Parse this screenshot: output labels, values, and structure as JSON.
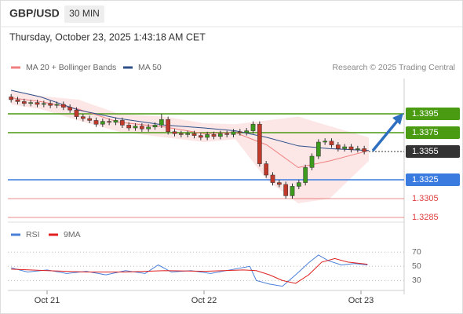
{
  "header": {
    "symbol": "GBP/USD",
    "timeframe": "30 MIN",
    "datetime": "Thursday, October 23, 2025 1:43:18 AM CET"
  },
  "chart_data": [
    {
      "type": "candlestick",
      "credit": "Research © 2025 Trading Central",
      "xlim": [
        0,
        60
      ],
      "ylim": [
        1.328,
        1.34325
      ],
      "xticks": [
        {
          "value": 6,
          "label": "Oct 21"
        },
        {
          "value": 30,
          "label": "Oct 22"
        },
        {
          "value": 54,
          "label": "Oct 23"
        }
      ],
      "up_color": "#3c9a1c",
      "down_color": "#c0392b",
      "x": [
        0.5,
        1.5,
        2.5,
        3.5,
        4.5,
        5.5,
        6.5,
        7.5,
        8.5,
        9.5,
        10.5,
        11.5,
        12.5,
        13.5,
        14.5,
        15.5,
        16.5,
        17.5,
        18.5,
        19.5,
        20.5,
        21.5,
        22.5,
        23.5,
        24.5,
        25.5,
        26.5,
        27.5,
        28.5,
        29.5,
        30.5,
        31.5,
        32.5,
        33.5,
        34.5,
        35.5,
        36.5,
        37.5,
        38.5,
        39.5,
        40.5,
        41.5,
        42.5,
        43.5,
        44.5,
        45.5,
        46.5,
        47.5,
        48.5,
        49.5,
        50.5,
        51.5,
        52.5,
        53.5,
        54.5
      ],
      "open": [
        1.3413,
        1.341,
        1.3408,
        1.3406,
        1.3407,
        1.3405,
        1.3406,
        1.3404,
        1.3405,
        1.3402,
        1.3399,
        1.3392,
        1.339,
        1.3388,
        1.3384,
        1.3387,
        1.3386,
        1.3388,
        1.3383,
        1.338,
        1.3382,
        1.3379,
        1.3381,
        1.3383,
        1.3389,
        1.3376,
        1.3374,
        1.3373,
        1.3374,
        1.3372,
        1.337,
        1.3373,
        1.3371,
        1.3374,
        1.3373,
        1.3376,
        1.3375,
        1.3377,
        1.3384,
        1.3342,
        1.333,
        1.3322,
        1.332,
        1.3308,
        1.3318,
        1.3322,
        1.3338,
        1.335,
        1.3365,
        1.3366,
        1.3362,
        1.3358,
        1.336,
        1.3357,
        1.3358
      ],
      "high": [
        1.3416,
        1.3413,
        1.3411,
        1.341,
        1.341,
        1.3409,
        1.3409,
        1.3408,
        1.3408,
        1.3405,
        1.3402,
        1.3395,
        1.3393,
        1.3391,
        1.339,
        1.339,
        1.3391,
        1.3391,
        1.3386,
        1.3385,
        1.3385,
        1.3384,
        1.3386,
        1.3395,
        1.3392,
        1.3379,
        1.3377,
        1.3377,
        1.3377,
        1.3375,
        1.3376,
        1.3376,
        1.3377,
        1.3377,
        1.3379,
        1.3379,
        1.338,
        1.3387,
        1.3387,
        1.3345,
        1.3333,
        1.3325,
        1.3323,
        1.3321,
        1.3325,
        1.3341,
        1.3353,
        1.3368,
        1.3369,
        1.3369,
        1.3365,
        1.3363,
        1.3363,
        1.3361,
        1.3361
      ],
      "low": [
        1.3407,
        1.3405,
        1.3403,
        1.3403,
        1.3402,
        1.3402,
        1.3401,
        1.3401,
        1.3399,
        1.3396,
        1.3389,
        1.3387,
        1.3385,
        1.3381,
        1.3381,
        1.3383,
        1.3383,
        1.338,
        1.3377,
        1.3377,
        1.3376,
        1.3376,
        1.3378,
        1.338,
        1.3373,
        1.3371,
        1.337,
        1.337,
        1.3369,
        1.3367,
        1.3367,
        1.3368,
        1.3368,
        1.337,
        1.337,
        1.3372,
        1.3372,
        1.3374,
        1.3339,
        1.3327,
        1.3319,
        1.3317,
        1.3305,
        1.3305,
        1.3315,
        1.3319,
        1.3335,
        1.3347,
        1.3362,
        1.3359,
        1.3355,
        1.3355,
        1.3354,
        1.3354,
        1.3352
      ],
      "close": [
        1.341,
        1.3408,
        1.3406,
        1.3407,
        1.3405,
        1.3406,
        1.3404,
        1.3405,
        1.3402,
        1.3399,
        1.3392,
        1.339,
        1.3388,
        1.3384,
        1.3387,
        1.3386,
        1.3388,
        1.3383,
        1.338,
        1.3382,
        1.3379,
        1.3381,
        1.3383,
        1.3389,
        1.3376,
        1.3374,
        1.3373,
        1.3374,
        1.3372,
        1.337,
        1.3373,
        1.3371,
        1.3374,
        1.3373,
        1.3376,
        1.3375,
        1.3377,
        1.3384,
        1.3342,
        1.333,
        1.3322,
        1.332,
        1.3308,
        1.3318,
        1.3322,
        1.3338,
        1.335,
        1.3365,
        1.3366,
        1.3362,
        1.3358,
        1.336,
        1.3357,
        1.3358,
        1.3355
      ],
      "series": [
        {
          "name": "MA 20 + Bollinger Bands",
          "color": "#f08080",
          "x": [
            0.5,
            5,
            10.8,
            17,
            24,
            30,
            34.8,
            39.6,
            44.4,
            49.2,
            55.2
          ],
          "values": [
            1.3412,
            1.3408,
            1.34,
            1.3386,
            1.3381,
            1.3374,
            1.3375,
            1.3362,
            1.3338,
            1.3345,
            1.3356
          ],
          "upper": [
            1.342,
            1.3414,
            1.341,
            1.3395,
            1.3392,
            1.3385,
            1.3384,
            1.3388,
            1.3392,
            1.3382,
            1.337
          ],
          "lower": [
            1.3405,
            1.34,
            1.3388,
            1.3376,
            1.337,
            1.3365,
            1.3368,
            1.3325,
            1.33,
            1.3305,
            1.3345
          ]
        },
        {
          "name": "MA 50",
          "color": "#2d4f8a",
          "x": [
            0.5,
            5,
            10.8,
            17,
            24,
            30,
            34.8,
            39.6,
            44.4,
            49.2,
            55.2
          ],
          "values": [
            1.342,
            1.3413,
            1.3399,
            1.339,
            1.3383,
            1.338,
            1.3377,
            1.337,
            1.3361,
            1.3358,
            1.3356
          ]
        }
      ],
      "levels": [
        {
          "value": 1.3395,
          "color": "#4a9a12",
          "box": true
        },
        {
          "value": 1.3375,
          "color": "#4a9a12",
          "box": true
        },
        {
          "value": 1.3355,
          "color": "#333333",
          "box": true,
          "dotted": true
        },
        {
          "value": 1.3325,
          "color": "#3a7be0",
          "box": true
        },
        {
          "value": 1.3305,
          "color": "#e04040",
          "box": false
        },
        {
          "value": 1.3285,
          "color": "#e04040",
          "box": false
        }
      ]
    },
    {
      "type": "line",
      "xlim": [
        0,
        60
      ],
      "ylim": [
        16,
        88
      ],
      "yticks": [
        70,
        50,
        30
      ],
      "series": [
        {
          "name": "RSI",
          "color": "#4a7fd8",
          "x": [
            0.5,
            3,
            6,
            9,
            12,
            15,
            18,
            21,
            23,
            25,
            28,
            31,
            34,
            37,
            38,
            40,
            42,
            44,
            46,
            47.5,
            49,
            51,
            53,
            55
          ],
          "values": [
            48,
            42,
            45,
            40,
            43,
            38,
            44,
            40,
            52,
            42,
            44,
            40,
            45,
            50,
            30,
            25,
            22,
            38,
            55,
            66,
            58,
            52,
            54,
            52
          ]
        },
        {
          "name": "9MA",
          "color": "#e02020",
          "x": [
            0.5,
            6,
            12,
            18,
            24,
            30,
            36,
            38,
            40,
            42,
            44,
            46,
            48,
            50,
            52,
            55
          ],
          "values": [
            46,
            44,
            42,
            42,
            44,
            43,
            45,
            44,
            38,
            30,
            26,
            38,
            56,
            61,
            56,
            53
          ]
        }
      ]
    }
  ]
}
